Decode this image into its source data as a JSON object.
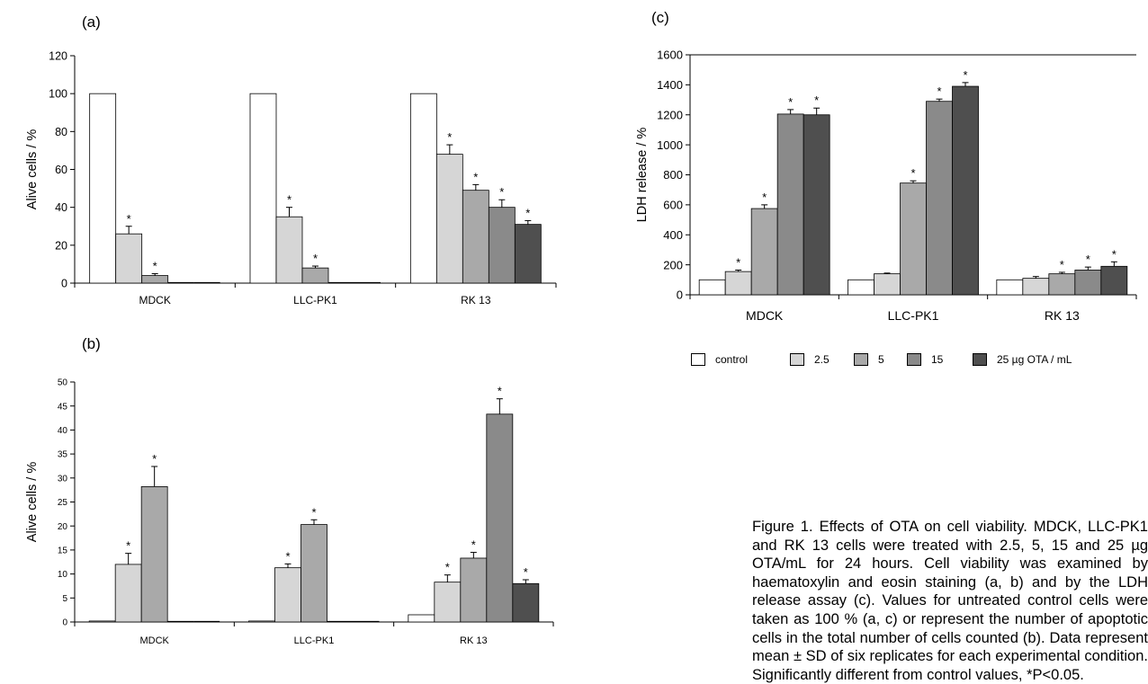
{
  "panels": [
    {
      "label": "(a)",
      "chart_data": {
        "type": "bar",
        "ylabel": "Alive cells / %",
        "ylim": [
          0,
          120
        ],
        "yticks": [
          0,
          20,
          40,
          60,
          80,
          100,
          120
        ],
        "categories": [
          "MDCK",
          "LLC-PK1",
          "RK 13"
        ],
        "series": [
          {
            "values": [
              100,
              100,
              100
            ],
            "errors": [
              0,
              0,
              0
            ],
            "sig": [
              false,
              false,
              false
            ]
          },
          {
            "values": [
              26,
              35,
              68
            ],
            "errors": [
              4,
              5,
              5
            ],
            "sig": [
              true,
              true,
              true
            ]
          },
          {
            "values": [
              4,
              8,
              49
            ],
            "errors": [
              1,
              1,
              3
            ],
            "sig": [
              true,
              true,
              true
            ]
          },
          {
            "values": [
              0,
              0,
              40
            ],
            "errors": [
              0,
              0,
              4
            ],
            "sig": [
              false,
              false,
              true
            ]
          },
          {
            "values": [
              0,
              0,
              31
            ],
            "errors": [
              0,
              0,
              2
            ],
            "sig": [
              false,
              false,
              true
            ]
          }
        ]
      }
    },
    {
      "label": "(b)",
      "chart_data": {
        "type": "bar",
        "ylabel": "Alive cells / %",
        "ylim": [
          0,
          50
        ],
        "yticks": [
          0,
          5,
          10,
          15,
          20,
          25,
          30,
          35,
          40,
          45,
          50
        ],
        "categories": [
          "MDCK",
          "LLC-PK1",
          "RK 13"
        ],
        "series": [
          {
            "values": [
              0.2,
              0.2,
              1.5
            ],
            "errors": [
              0,
              0,
              0
            ],
            "sig": [
              false,
              false,
              false
            ]
          },
          {
            "values": [
              12,
              11.3,
              8.3
            ],
            "errors": [
              2.3,
              0.8,
              1.5
            ],
            "sig": [
              true,
              true,
              true
            ]
          },
          {
            "values": [
              28.2,
              20.3,
              13.3
            ],
            "errors": [
              4.2,
              1,
              1.2
            ],
            "sig": [
              true,
              true,
              true
            ]
          },
          {
            "values": [
              0,
              0,
              43.3
            ],
            "errors": [
              0,
              0,
              3.2
            ],
            "sig": [
              false,
              false,
              true
            ]
          },
          {
            "values": [
              0,
              0,
              8
            ],
            "errors": [
              0,
              0,
              0.8
            ],
            "sig": [
              false,
              false,
              true
            ]
          }
        ]
      }
    },
    {
      "label": "(c)",
      "chart_data": {
        "type": "bar",
        "ylabel": "LDH release / %",
        "ylim": [
          0,
          1600
        ],
        "yticks": [
          0,
          200,
          400,
          600,
          800,
          1000,
          1200,
          1400,
          1600
        ],
        "categories": [
          "MDCK",
          "LLC-PK1",
          "RK 13"
        ],
        "series": [
          {
            "values": [
              100,
              100,
              100
            ],
            "errors": [
              0,
              0,
              0
            ],
            "sig": [
              false,
              false,
              false
            ]
          },
          {
            "values": [
              155,
              140,
              110
            ],
            "errors": [
              10,
              5,
              12
            ],
            "sig": [
              true,
              false,
              false
            ]
          },
          {
            "values": [
              575,
              745,
              140
            ],
            "errors": [
              25,
              15,
              10
            ],
            "sig": [
              true,
              true,
              true
            ]
          },
          {
            "values": [
              1205,
              1290,
              165
            ],
            "errors": [
              30,
              15,
              20
            ],
            "sig": [
              true,
              true,
              true
            ]
          },
          {
            "values": [
              1200,
              1390,
              190
            ],
            "errors": [
              45,
              25,
              30
            ],
            "sig": [
              true,
              true,
              true
            ]
          }
        ]
      }
    }
  ],
  "significance_marker": "*",
  "bar_colors": [
    "#ffffff",
    "#d6d6d6",
    "#a9a9a9",
    "#8a8a8a",
    "#4f4f4f"
  ],
  "legend": [
    "control",
    "2.5",
    "5",
    "15",
    "25 µg OTA / mL"
  ],
  "caption": {
    "figure": "Figure 1.",
    "text": "Effects of OTA on cell viability. MDCK, LLC-PK1 and RK 13 cells were treated with 2.5, 5, 15 and 25 µg OTA/mL for 24 hours. Cell viability was examined by haematoxylin and eosin staining (a, b) and by the LDH release assay (c). Values for untreated control cells were taken as 100 % (a, c) or represent the number of apoptotic cells in the total number of cells counted (b). Data represent mean ± SD of six replicates for each experimental condition. Significantly different from control values, *P<0.05."
  }
}
